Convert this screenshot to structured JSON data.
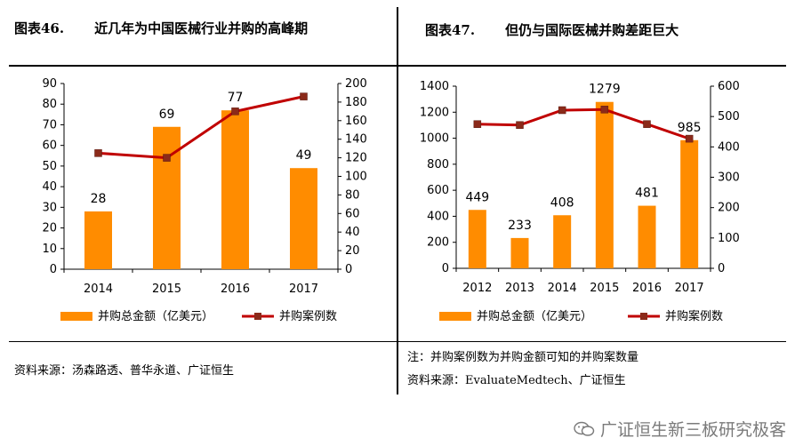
{
  "figures": [
    {
      "title_num": "图表46.",
      "title_text": "近几年为中国医械行业并购的高峰期",
      "source": "资料来源：汤森路透、普华永道、广证恒生",
      "chart_data": {
        "type": "bar",
        "categories": [
          "2014",
          "2015",
          "2016",
          "2017"
        ],
        "series": [
          {
            "name": "并购总金额（亿美元）",
            "type": "bar",
            "axis": "left",
            "values": [
              28,
              69,
              77,
              49
            ],
            "color": "#FF8C00"
          },
          {
            "name": "并购案例数",
            "type": "line",
            "axis": "right",
            "values": [
              125,
              120,
              170,
              186
            ],
            "color": "#C00000"
          }
        ],
        "data_labels": [
          "28",
          "69",
          "77",
          "49"
        ],
        "ylim_left": [
          0,
          90
        ],
        "yticks_left": [
          "0",
          "10",
          "20",
          "30",
          "40",
          "50",
          "60",
          "70",
          "80",
          "90"
        ],
        "ylim_right": [
          0,
          200
        ],
        "yticks_right": [
          "0",
          "20",
          "40",
          "60",
          "80",
          "100",
          "120",
          "140",
          "160",
          "180",
          "200"
        ],
        "grid": false,
        "legend": "bottom"
      }
    },
    {
      "title_num": "图表47.",
      "title_text": "但仍与国际医械并购差距巨大",
      "note": "注：并购案例数为并购金额可知的并购案数量",
      "source": "资料来源：EvaluateMedtech、广证恒生",
      "chart_data": {
        "type": "bar",
        "categories": [
          "2012",
          "2013",
          "2014",
          "2015",
          "2016",
          "2017"
        ],
        "series": [
          {
            "name": "并购总金额（亿美元）",
            "type": "bar",
            "axis": "left",
            "values": [
              449,
              233,
              408,
              1279,
              481,
              985
            ],
            "color": "#FF8C00"
          },
          {
            "name": "并购案例数",
            "type": "line",
            "axis": "right",
            "values": [
              475,
              472,
              521,
              523,
              475,
              427
            ],
            "color": "#C00000"
          }
        ],
        "data_labels": [
          "449",
          "233",
          "408",
          "1279",
          "481",
          "985"
        ],
        "ylim_left": [
          0,
          1400
        ],
        "yticks_left": [
          "0",
          "200",
          "400",
          "600",
          "800",
          "1000",
          "1200",
          "1400"
        ],
        "ylim_right": [
          0,
          600
        ],
        "yticks_right": [
          "0",
          "100",
          "200",
          "300",
          "400",
          "500",
          "600"
        ],
        "grid": false,
        "legend": "bottom"
      }
    }
  ],
  "watermark": "广证恒生新三板研究极客"
}
